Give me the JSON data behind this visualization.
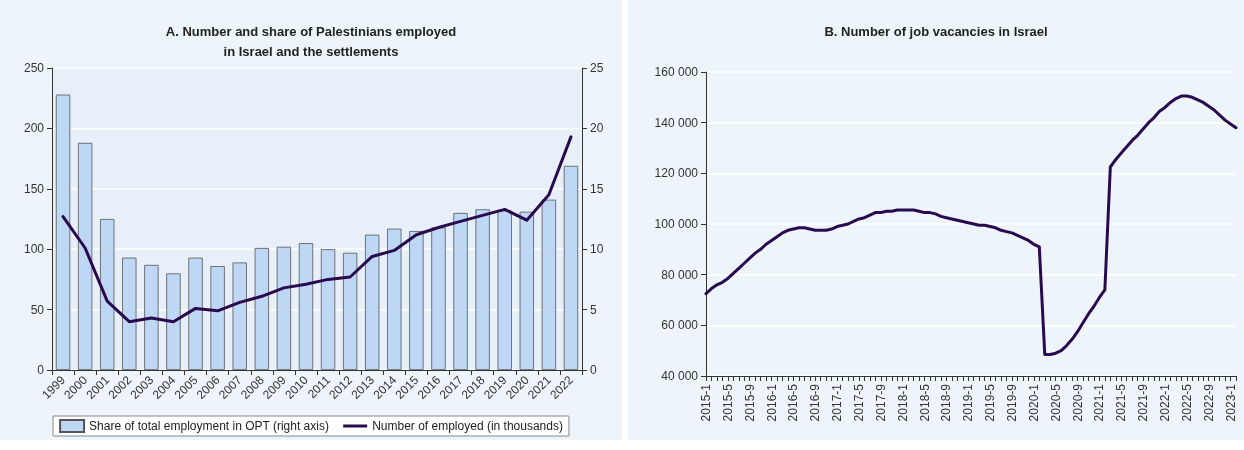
{
  "chart_data": [
    {
      "type": "bar",
      "title": "A. Number and share of Palestinians employed\nin Israel and the settlements",
      "categories": [
        "1999",
        "2000",
        "2001",
        "2002",
        "2003",
        "2004",
        "2005",
        "2006",
        "2007",
        "2008",
        "2009",
        "2010",
        "2011",
        "2012",
        "2013",
        "2014",
        "2015",
        "2016",
        "2017",
        "2018",
        "2019",
        "2020",
        "2021",
        "2022"
      ],
      "series": [
        {
          "name": "Share of total employment in OPT (right axis)",
          "axis": "y2",
          "color": "#bdd7f5",
          "values": [
            22.8,
            18.8,
            12.5,
            9.3,
            8.7,
            8.0,
            9.3,
            8.6,
            8.9,
            10.1,
            10.2,
            10.5,
            10.0,
            9.7,
            11.2,
            11.7,
            11.5,
            11.8,
            13.0,
            13.3,
            13.2,
            13.1,
            14.1,
            16.9
          ]
        },
        {
          "name": "Number of employed (in thousands)",
          "type": "line",
          "color": "#2a0a4f",
          "values": [
            127,
            101,
            57,
            40,
            43,
            40,
            51,
            49,
            56,
            61,
            68,
            71,
            75,
            77,
            94,
            99,
            112,
            118,
            123,
            128,
            133,
            124,
            145,
            193
          ]
        }
      ],
      "ylim": [
        0,
        250
      ],
      "yticks": [
        0,
        50,
        100,
        150,
        200,
        250
      ],
      "y2lim": [
        0,
        25
      ],
      "y2ticks": [
        0,
        5,
        10,
        15,
        20,
        25
      ],
      "grid": "y",
      "legend": "bottom",
      "marker": "none",
      "line_style": "solid"
    },
    {
      "type": "line",
      "title": "B. Number of job vacancies in Israel",
      "categories": [
        "2015-1",
        null,
        null,
        null,
        "2015-5",
        null,
        null,
        null,
        "2015-9",
        null,
        null,
        null,
        "2016-1",
        null,
        null,
        null,
        "2016-5",
        null,
        null,
        null,
        "2016-9",
        null,
        null,
        null,
        "2017-1",
        null,
        null,
        null,
        "2017-5",
        null,
        null,
        null,
        "2017-9",
        null,
        null,
        null,
        "2018-1",
        null,
        null,
        null,
        "2018-5",
        null,
        null,
        null,
        "2018-9",
        null,
        null,
        null,
        "2019-1",
        null,
        null,
        null,
        "2019-5",
        null,
        null,
        null,
        "2019-9",
        null,
        null,
        null,
        "2020-1",
        null,
        null,
        null,
        "2020-5",
        null,
        null,
        null,
        "2020-9",
        null,
        null,
        null,
        "2021-1",
        null,
        null,
        null,
        "2021-5",
        null,
        null,
        null,
        "2021-9",
        null,
        null,
        null,
        "2022-1",
        null,
        null,
        null,
        "2022-5",
        null,
        null,
        null,
        "2022-9",
        null,
        null,
        null,
        "2023-1",
        null
      ],
      "series": [
        {
          "color": "#2a0a4f",
          "values": [
            72500,
            74500,
            76000,
            77000,
            78500,
            80500,
            82500,
            84500,
            86500,
            88500,
            90000,
            92000,
            93500,
            95000,
            96500,
            97500,
            98000,
            98500,
            98500,
            98000,
            97500,
            97500,
            97500,
            98000,
            99000,
            99500,
            100000,
            101000,
            102000,
            102500,
            103500,
            104500,
            104500,
            105000,
            105000,
            105500,
            105500,
            105500,
            105500,
            105000,
            104500,
            104500,
            104000,
            103000,
            102500,
            102000,
            101500,
            101000,
            100500,
            100000,
            99500,
            99500,
            99000,
            98500,
            97500,
            97000,
            96500,
            95500,
            94500,
            93500,
            92000,
            91000,
            48500,
            48500,
            49000,
            50000,
            52000,
            54500,
            57500,
            61000,
            64500,
            67500,
            71000,
            74000,
            122500,
            125500,
            128000,
            130500,
            133000,
            135000,
            137500,
            140000,
            142000,
            144500,
            146000,
            148000,
            149500,
            150500,
            150500,
            150000,
            149000,
            148000,
            146500,
            145000,
            143000,
            141000,
            139500,
            138000
          ]
        }
      ],
      "ylim": [
        40000,
        160000
      ],
      "yticks": [
        {
          "value": 40000,
          "label": "40 000"
        },
        {
          "value": 60000,
          "label": "60 000"
        },
        {
          "value": 80000,
          "label": "80 000"
        },
        {
          "value": 100000,
          "label": "100 000"
        },
        {
          "value": 120000,
          "label": "120 000"
        },
        {
          "value": 140000,
          "label": "140 000"
        },
        {
          "value": 160000,
          "label": "160 000"
        }
      ],
      "grid": "y",
      "marker": "none",
      "line_style": "solid"
    }
  ]
}
